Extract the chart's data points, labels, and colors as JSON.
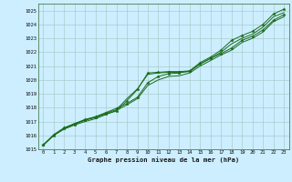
{
  "title": "Graphe pression niveau de la mer (hPa)",
  "bg_color": "#cceeff",
  "grid_color": "#aacccc",
  "line_color": "#1a6b1a",
  "xlim": [
    -0.5,
    23.5
  ],
  "ylim": [
    1015,
    1025.5
  ],
  "xticks": [
    0,
    1,
    2,
    3,
    4,
    5,
    6,
    7,
    8,
    9,
    10,
    11,
    12,
    13,
    14,
    15,
    16,
    17,
    18,
    19,
    20,
    21,
    22,
    23
  ],
  "yticks": [
    1015,
    1016,
    1017,
    1018,
    1019,
    1020,
    1021,
    1022,
    1023,
    1024,
    1025
  ],
  "x": [
    0,
    1,
    2,
    3,
    4,
    5,
    6,
    7,
    8,
    9,
    10,
    11,
    12,
    13,
    14,
    15,
    16,
    17,
    18,
    19,
    20,
    21,
    22,
    23
  ],
  "line1": [
    1015.3,
    1016.0,
    1016.5,
    1016.8,
    1017.1,
    1017.3,
    1017.55,
    1017.75,
    1018.5,
    1019.3,
    1020.5,
    1020.55,
    1020.6,
    1020.6,
    1020.65,
    1021.25,
    1021.65,
    1022.15,
    1022.85,
    1023.2,
    1023.5,
    1024.0,
    1024.75,
    1025.1
  ],
  "line2": [
    1015.3,
    1016.0,
    1016.5,
    1016.85,
    1017.1,
    1017.3,
    1017.6,
    1017.85,
    1018.65,
    1019.35,
    1020.4,
    1020.5,
    1020.55,
    1020.55,
    1020.6,
    1021.15,
    1021.55,
    1022.0,
    1022.6,
    1023.0,
    1023.3,
    1023.8,
    1024.55,
    1024.85
  ],
  "line3": [
    1015.3,
    1016.05,
    1016.55,
    1016.85,
    1017.15,
    1017.35,
    1017.65,
    1017.95,
    1018.3,
    1018.75,
    1019.8,
    1020.25,
    1020.45,
    1020.5,
    1020.65,
    1021.15,
    1021.55,
    1021.9,
    1022.3,
    1022.85,
    1023.15,
    1023.6,
    1024.3,
    1024.7
  ],
  "line4": [
    1015.3,
    1016.0,
    1016.45,
    1016.75,
    1017.0,
    1017.2,
    1017.5,
    1017.8,
    1018.2,
    1018.65,
    1019.6,
    1020.0,
    1020.25,
    1020.3,
    1020.5,
    1021.0,
    1021.4,
    1021.8,
    1022.15,
    1022.7,
    1023.0,
    1023.45,
    1024.2,
    1024.55
  ]
}
